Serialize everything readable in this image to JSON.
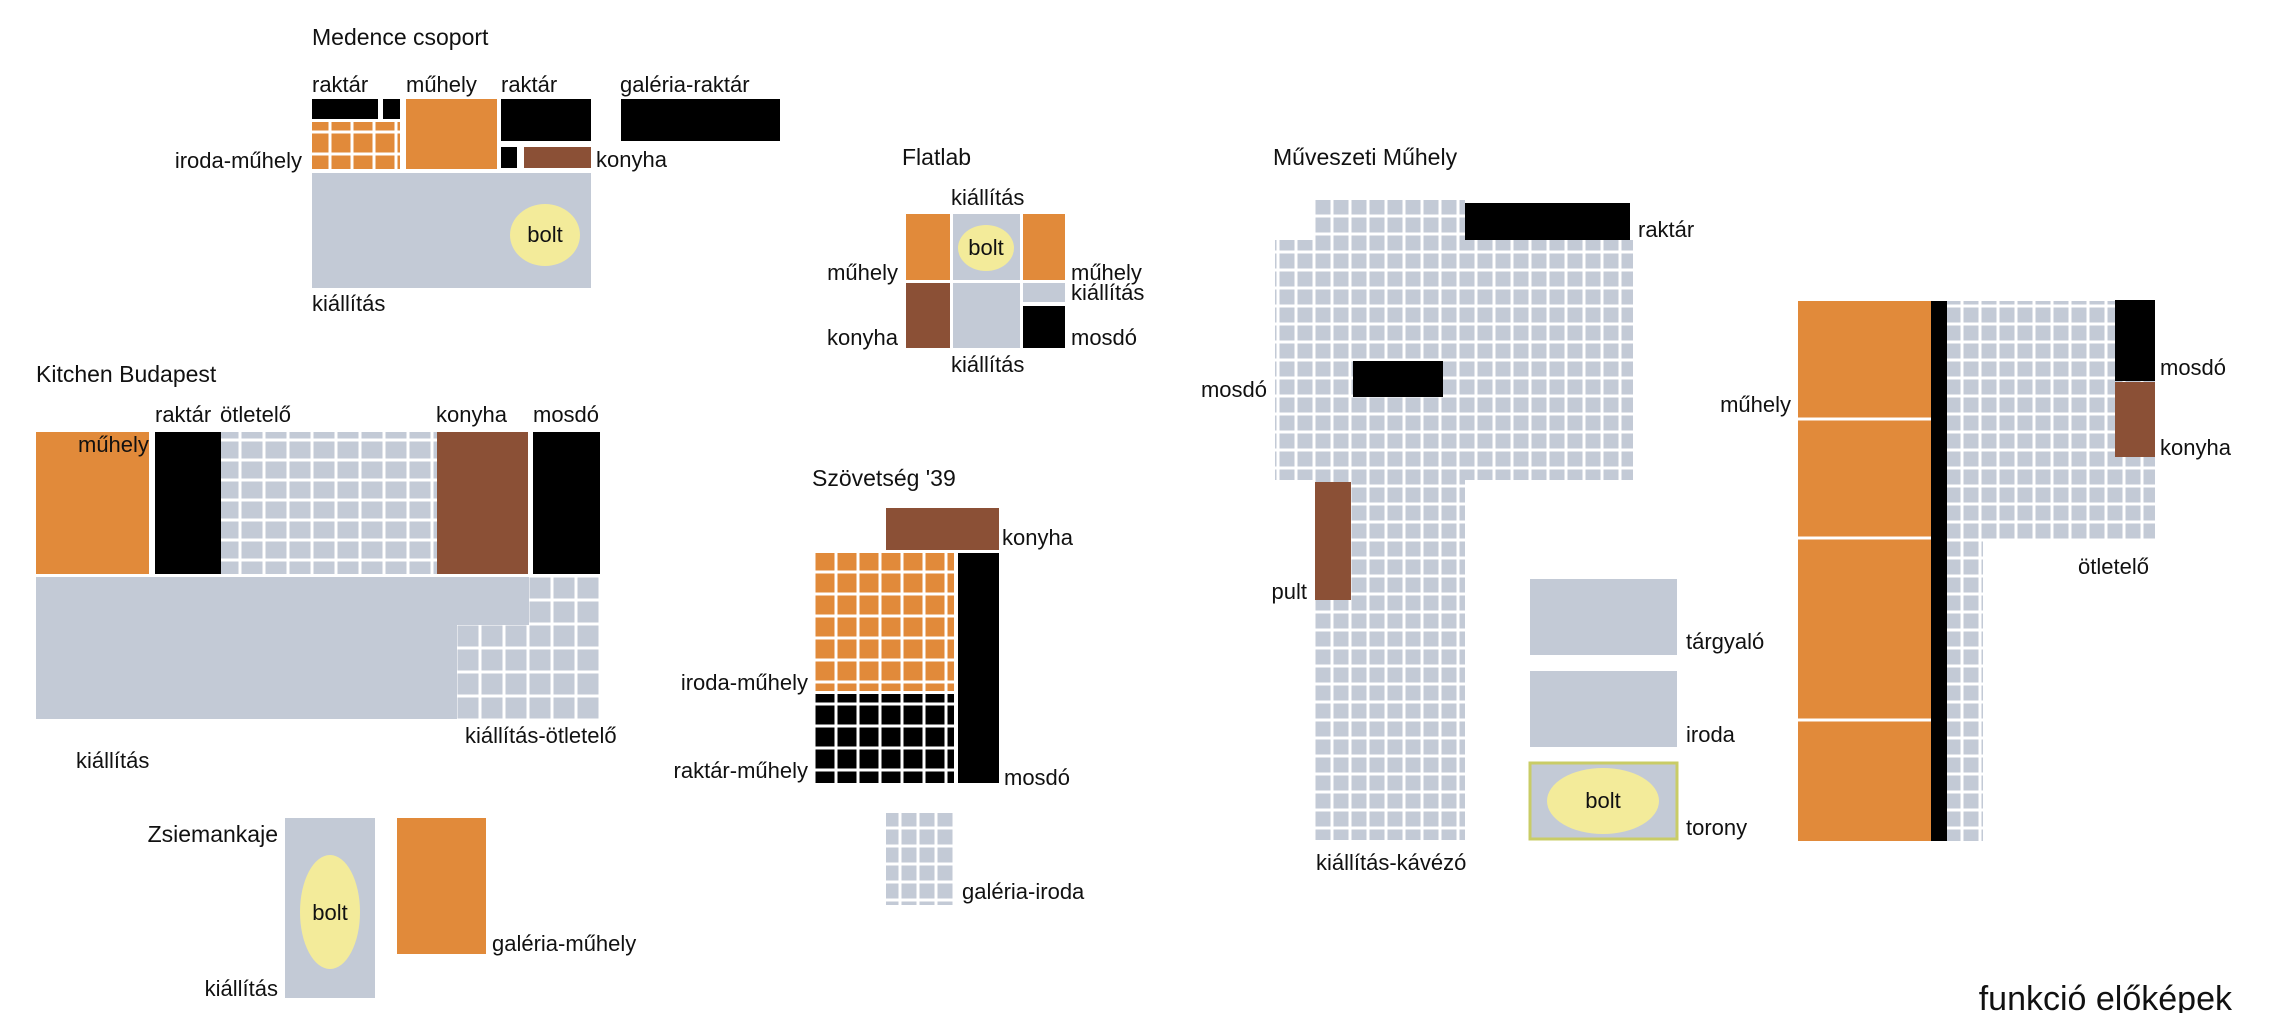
{
  "colors": {
    "grey": "#c3cad6",
    "orange": "#e18a3a",
    "brown": "#8b5036",
    "black": "#000000",
    "yellow": "#f3eb9a",
    "gridline": "#ffffff",
    "green_outline": "#c9cc66"
  },
  "footer": "funkció előképek",
  "groups": {
    "medence": {
      "title": "Medence csoport",
      "labels": {
        "raktar1": "raktár",
        "muhely": "műhely",
        "raktar2": "raktár",
        "galeria": "galéria-raktár",
        "iroda": "iroda-műhely",
        "konyha": "konyha",
        "bolt": "bolt",
        "kiallitas": "kiállítás"
      }
    },
    "flatlab": {
      "title": "Flatlab",
      "labels": {
        "kiallitas_top": "kiállítás",
        "bolt": "bolt",
        "muhely_l": "műhely",
        "muhely_r": "műhely",
        "kiallitas_r": "kiállítás",
        "konyha": "konyha",
        "mosdo": "mosdó",
        "kiallitas_bottom": "kiállítás"
      }
    },
    "kitchen": {
      "title": "Kitchen Budapest",
      "labels": {
        "raktar": "raktár",
        "otletelo": "ötletelő",
        "muhely": "műhely",
        "konyha": "konyha",
        "mosdo": "mosdó",
        "kiallitas_otletelo": "kiállítás-ötletelő",
        "kiallitas": "kiállítás"
      }
    },
    "szovetseg": {
      "title": "Szövetség '39",
      "labels": {
        "konyha": "konyha",
        "iroda": "iroda-műhely",
        "raktar": "raktár-műhely",
        "mosdo": "mosdó",
        "galeria": "galéria-iroda"
      }
    },
    "zsiemankaje": {
      "title": "Zsiemankaje",
      "labels": {
        "bolt": "bolt",
        "galeria": "galéria-műhely",
        "kiallitas": "kiállítás"
      }
    },
    "muveszeti": {
      "title": "Műveszeti Műhely",
      "labels": {
        "raktar": "raktár",
        "mosdo": "mosdó",
        "pult": "pult",
        "kiallitas": "kiállítás-kávézó"
      }
    },
    "legend": {
      "labels": {
        "targyalo": "tárgyaló",
        "iroda": "iroda",
        "bolt": "bolt",
        "torony": "torony"
      }
    },
    "right": {
      "labels": {
        "muhely": "műhely",
        "mosdo": "mosdó",
        "konyha": "konyha",
        "otletelo": "ötletelő"
      }
    }
  }
}
